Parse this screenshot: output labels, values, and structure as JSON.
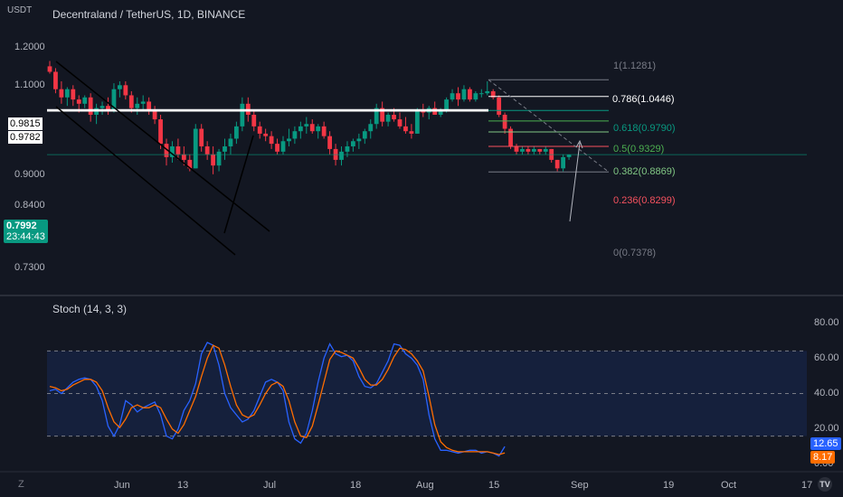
{
  "header": {
    "currency": "USDT",
    "title": "Decentraland / TetherUS, 1D, BINANCE"
  },
  "price_axis": {
    "ticks": [
      "1.2000",
      "1.1000",
      "0.9000",
      "0.8400",
      "0.7300"
    ],
    "levels": [
      {
        "label": "0.9815",
        "value": 0.9815
      },
      {
        "label": "0.9782",
        "value": 0.9782
      }
    ],
    "last_price": {
      "label": "0.7992",
      "value": 0.7992,
      "countdown": "23:44:43"
    }
  },
  "fib": {
    "levels": [
      {
        "ratio": "1",
        "label": "1(1.1281)",
        "value": 1.1281,
        "color": "#787b86"
      },
      {
        "ratio": "0.786",
        "label": "0.786(1.0446)",
        "value": 1.0446,
        "color": "#ffffff"
      },
      {
        "ratio": "0.618",
        "label": "0.618(0.9790)",
        "value": 0.979,
        "color": "#089981"
      },
      {
        "ratio": "0.5",
        "label": "0.5(0.9329)",
        "value": 0.9329,
        "color": "#4caf50"
      },
      {
        "ratio": "0.382",
        "label": "0.382(0.8869)",
        "value": 0.8869,
        "color": "#81c784"
      },
      {
        "ratio": "0.236",
        "label": "0.236(0.8299)",
        "value": 0.8299,
        "color": "#f7525f"
      },
      {
        "ratio": "0",
        "label": "0(0.7378)",
        "value": 0.7378,
        "color": "#787b86"
      }
    ]
  },
  "stoch": {
    "title": "Stoch (14, 3, 3)",
    "ticks": [
      "80.00",
      "60.00",
      "40.00",
      "20.00",
      "0.00"
    ],
    "k_label": "12.65",
    "d_label": "8.17",
    "k_color": "#2962ff",
    "d_color": "#ff6d00"
  },
  "time_axis": {
    "ticks": [
      "Jun",
      "13",
      "Jul",
      "18",
      "Aug",
      "15",
      "Sep",
      "19",
      "Oct",
      "17"
    ]
  },
  "colors": {
    "up": "#089981",
    "down": "#f23645",
    "background": "#131722"
  },
  "chart_data": {
    "type": "candlestick",
    "title": "Decentraland / TetherUS, 1D, BINANCE",
    "ylabel": "USDT",
    "ylim": [
      0.7,
      1.26
    ],
    "y_scale": "log",
    "candles_ohlc": [
      [
        1.2,
        1.23,
        1.16,
        1.17
      ],
      [
        1.17,
        1.19,
        1.06,
        1.08
      ],
      [
        1.08,
        1.12,
        1.01,
        1.04
      ],
      [
        1.04,
        1.09,
        1.0,
        1.08
      ],
      [
        1.08,
        1.1,
        1.0,
        1.03
      ],
      [
        1.03,
        1.05,
        0.97,
        1.01
      ],
      [
        1.01,
        1.05,
        0.99,
        1.04
      ],
      [
        1.04,
        1.06,
        0.93,
        0.96
      ],
      [
        0.96,
        1.01,
        0.92,
        0.99
      ],
      [
        0.99,
        1.02,
        0.96,
        1.0
      ],
      [
        1.0,
        1.04,
        0.96,
        0.98
      ],
      [
        0.98,
        1.11,
        0.97,
        1.08
      ],
      [
        1.08,
        1.12,
        1.04,
        1.1
      ],
      [
        1.1,
        1.12,
        1.03,
        1.05
      ],
      [
        1.05,
        1.07,
        0.97,
        0.99
      ],
      [
        0.99,
        1.04,
        0.96,
        1.01
      ],
      [
        1.01,
        1.05,
        0.98,
        1.02
      ],
      [
        1.02,
        1.04,
        0.96,
        0.98
      ],
      [
        0.98,
        1.0,
        0.92,
        0.94
      ],
      [
        0.94,
        0.96,
        0.82,
        0.84
      ],
      [
        0.84,
        0.86,
        0.76,
        0.79
      ],
      [
        0.79,
        0.85,
        0.77,
        0.83
      ],
      [
        0.83,
        0.86,
        0.78,
        0.8
      ],
      [
        0.8,
        0.83,
        0.76,
        0.78
      ],
      [
        0.78,
        0.8,
        0.74,
        0.75
      ],
      [
        0.75,
        0.92,
        0.75,
        0.9
      ],
      [
        0.9,
        0.92,
        0.81,
        0.83
      ],
      [
        0.83,
        0.85,
        0.78,
        0.8
      ],
      [
        0.8,
        0.83,
        0.73,
        0.76
      ],
      [
        0.76,
        0.82,
        0.74,
        0.81
      ],
      [
        0.81,
        0.86,
        0.78,
        0.83
      ],
      [
        0.83,
        0.88,
        0.8,
        0.86
      ],
      [
        0.86,
        0.93,
        0.84,
        0.91
      ],
      [
        0.91,
        1.04,
        0.89,
        1.01
      ],
      [
        1.01,
        1.04,
        0.93,
        0.96
      ],
      [
        0.96,
        0.98,
        0.89,
        0.91
      ],
      [
        0.91,
        0.93,
        0.86,
        0.88
      ],
      [
        0.88,
        0.9,
        0.85,
        0.87
      ],
      [
        0.87,
        0.89,
        0.82,
        0.84
      ],
      [
        0.84,
        0.86,
        0.8,
        0.81
      ],
      [
        0.81,
        0.87,
        0.8,
        0.85
      ],
      [
        0.85,
        0.9,
        0.83,
        0.86
      ],
      [
        0.86,
        0.91,
        0.84,
        0.89
      ],
      [
        0.89,
        0.93,
        0.86,
        0.91
      ],
      [
        0.91,
        0.95,
        0.88,
        0.92
      ],
      [
        0.92,
        0.94,
        0.88,
        0.89
      ],
      [
        0.89,
        0.92,
        0.86,
        0.91
      ],
      [
        0.91,
        0.93,
        0.86,
        0.87
      ],
      [
        0.87,
        0.89,
        0.8,
        0.82
      ],
      [
        0.82,
        0.84,
        0.76,
        0.78
      ],
      [
        0.78,
        0.83,
        0.76,
        0.81
      ],
      [
        0.81,
        0.85,
        0.79,
        0.83
      ],
      [
        0.83,
        0.86,
        0.81,
        0.85
      ],
      [
        0.85,
        0.88,
        0.82,
        0.86
      ],
      [
        0.86,
        0.9,
        0.84,
        0.89
      ],
      [
        0.89,
        0.94,
        0.86,
        0.92
      ],
      [
        0.92,
        1.01,
        0.9,
        0.99
      ],
      [
        0.99,
        1.02,
        0.91,
        0.93
      ],
      [
        0.93,
        0.97,
        0.91,
        0.96
      ],
      [
        0.96,
        0.99,
        0.93,
        0.94
      ],
      [
        0.94,
        0.97,
        0.9,
        0.91
      ],
      [
        0.91,
        0.95,
        0.88,
        0.89
      ],
      [
        0.89,
        0.92,
        0.86,
        0.88
      ],
      [
        0.88,
        0.99,
        0.88,
        0.98
      ],
      [
        0.98,
        1.01,
        0.95,
        0.97
      ],
      [
        0.97,
        1.0,
        0.94,
        0.99
      ],
      [
        0.99,
        1.02,
        0.96,
        0.96
      ],
      [
        0.96,
        0.99,
        0.95,
        0.98
      ],
      [
        0.98,
        1.04,
        0.97,
        1.03
      ],
      [
        1.03,
        1.08,
        1.02,
        1.06
      ],
      [
        1.06,
        1.09,
        1.0,
        1.03
      ],
      [
        1.03,
        1.1,
        1.02,
        1.08
      ],
      [
        1.08,
        1.09,
        1.02,
        1.03
      ],
      [
        1.03,
        1.07,
        1.02,
        1.06
      ],
      [
        1.06,
        1.08,
        1.04,
        1.06
      ],
      [
        1.06,
        1.12,
        1.05,
        1.07
      ],
      [
        1.07,
        1.08,
        1.03,
        1.04
      ],
      [
        1.04,
        1.05,
        0.95,
        0.96
      ],
      [
        0.96,
        0.97,
        0.88,
        0.9
      ],
      [
        0.9,
        0.91,
        0.82,
        0.83
      ],
      [
        0.83,
        0.84,
        0.8,
        0.81
      ],
      [
        0.81,
        0.83,
        0.8,
        0.82
      ],
      [
        0.82,
        0.83,
        0.8,
        0.81
      ],
      [
        0.81,
        0.83,
        0.8,
        0.82
      ],
      [
        0.82,
        0.82,
        0.8,
        0.81
      ],
      [
        0.81,
        0.83,
        0.8,
        0.82
      ],
      [
        0.82,
        0.82,
        0.77,
        0.78
      ],
      [
        0.78,
        0.78,
        0.74,
        0.75
      ],
      [
        0.75,
        0.8,
        0.74,
        0.79
      ],
      [
        0.79,
        0.8,
        0.78,
        0.7992
      ]
    ],
    "stoch_k": [
      52,
      53,
      50,
      54,
      58,
      60,
      61,
      60,
      55,
      45,
      27,
      20,
      28,
      45,
      42,
      37,
      40,
      42,
      44,
      35,
      20,
      18,
      25,
      38,
      45,
      57,
      78,
      86,
      84,
      70,
      50,
      40,
      35,
      30,
      32,
      38,
      48,
      58,
      60,
      58,
      52,
      30,
      18,
      15,
      22,
      38,
      58,
      75,
      85,
      78,
      76,
      77,
      73,
      62,
      55,
      54,
      57,
      65,
      73,
      85,
      84,
      78,
      75,
      70,
      60,
      35,
      18,
      10,
      10,
      9,
      8,
      9,
      10,
      10,
      8,
      9,
      8,
      6,
      12.65
    ],
    "stoch_d": [
      55,
      54,
      52,
      53,
      56,
      58,
      60,
      60,
      58,
      52,
      40,
      30,
      26,
      32,
      40,
      42,
      40,
      40,
      42,
      40,
      32,
      25,
      22,
      28,
      38,
      48,
      62,
      75,
      84,
      82,
      70,
      55,
      42,
      35,
      33,
      35,
      42,
      50,
      56,
      58,
      55,
      45,
      30,
      20,
      19,
      27,
      42,
      58,
      74,
      80,
      79,
      77,
      75,
      68,
      60,
      56,
      56,
      60,
      67,
      76,
      82,
      81,
      78,
      73,
      66,
      48,
      28,
      16,
      12,
      10,
      9,
      9,
      9,
      9,
      9,
      9,
      8,
      7,
      8.17
    ],
    "stoch_ylim": [
      0,
      100
    ],
    "x_ticks": [
      "Jun",
      "13",
      "Jul",
      "18",
      "Aug",
      "15",
      "Sep",
      "19",
      "Oct",
      "17"
    ]
  }
}
